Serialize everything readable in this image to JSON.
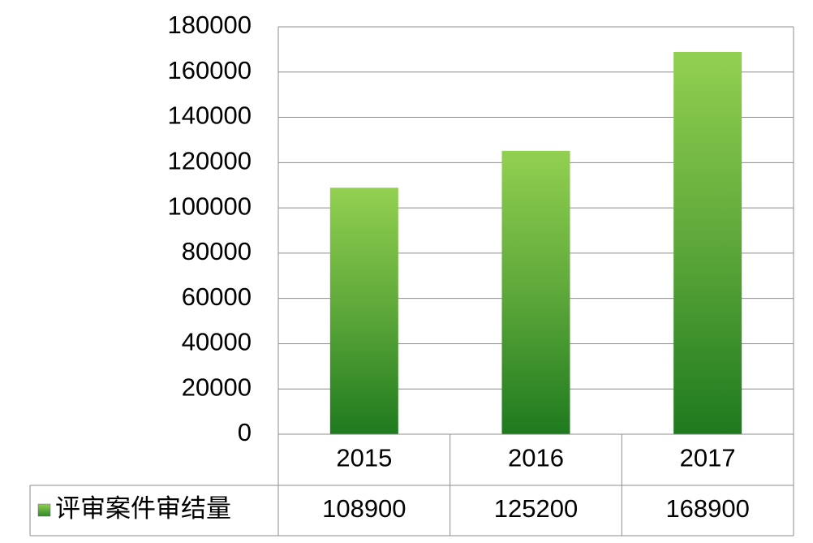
{
  "chart_data": {
    "type": "bar",
    "categories": [
      "2015",
      "2016",
      "2017"
    ],
    "series": [
      {
        "name": "评审案件审结量",
        "color": "#5ea83a",
        "values": [
          108900,
          125200,
          168900
        ]
      }
    ],
    "ylim": [
      0,
      180000
    ],
    "yticks": [
      0,
      20000,
      40000,
      60000,
      80000,
      100000,
      120000,
      140000,
      160000,
      180000
    ],
    "grid": true,
    "data_table": true
  }
}
